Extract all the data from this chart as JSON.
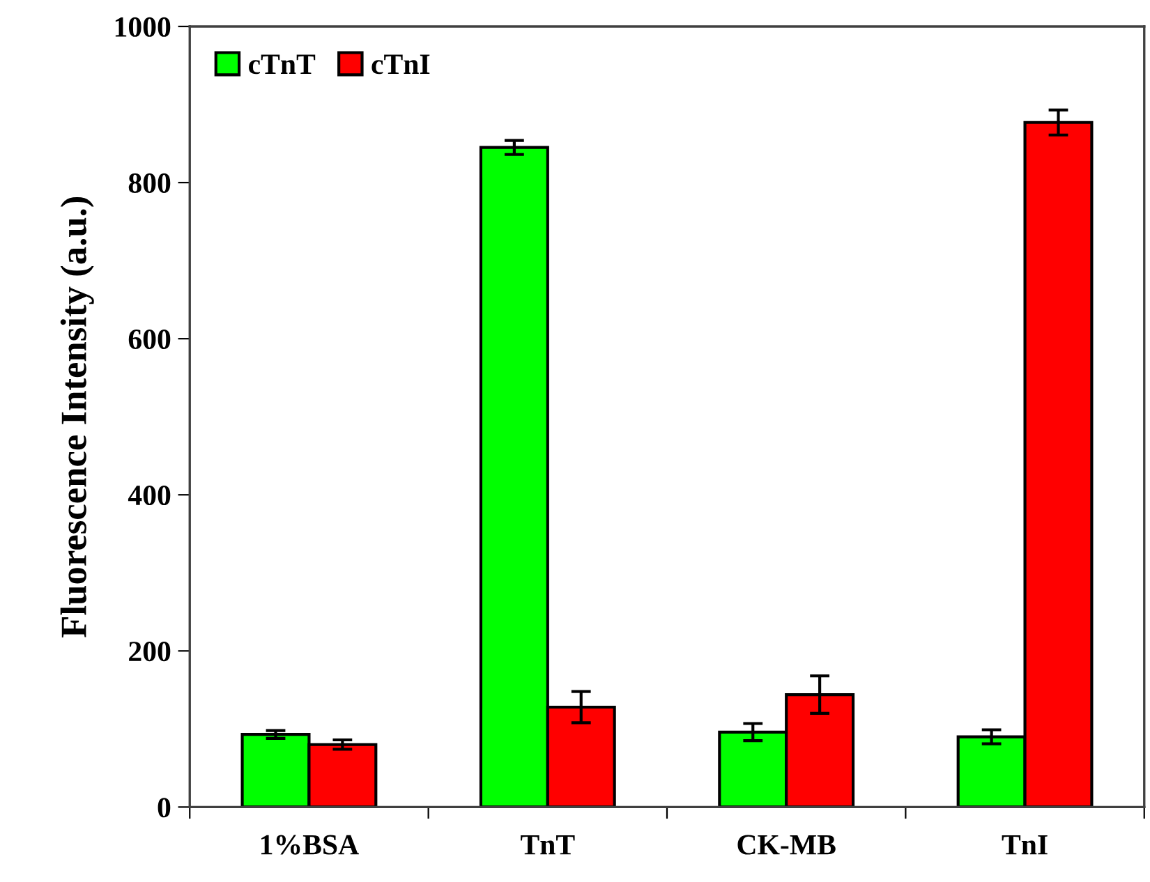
{
  "chart_data": {
    "type": "bar",
    "ylabel": "Fluorescence Intensity (a.u.)",
    "categories": [
      "1%BSA",
      "TnT",
      "CK-MB",
      "TnI"
    ],
    "series": [
      {
        "name": "cTnT",
        "color": "#00ff00",
        "values": [
          93,
          845,
          96,
          90
        ],
        "errors": [
          5,
          9,
          11,
          9
        ]
      },
      {
        "name": "cTnI",
        "color": "#ff0000",
        "values": [
          80,
          128,
          144,
          877
        ],
        "errors": [
          6,
          20,
          24,
          16
        ]
      }
    ],
    "ylim": [
      0,
      1000
    ],
    "yticks": [
      0,
      200,
      400,
      600,
      800,
      1000
    ],
    "grid": false,
    "legend": "top left"
  }
}
